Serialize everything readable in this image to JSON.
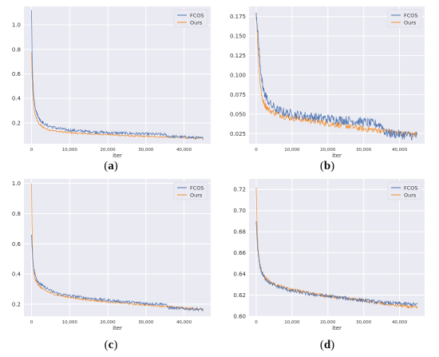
{
  "colors": {
    "plot_bg": "#eaeaf2",
    "grid": "#ffffff",
    "series_fcos": "#4c72b0",
    "series_ours": "#f28e2b",
    "tick_text": "#333333"
  },
  "chart_data": [
    {
      "type": "line",
      "caption_open": "(",
      "caption_letter": "a",
      "caption_close": ")",
      "xlabel": "iter",
      "xlim": [
        -2000,
        47000
      ],
      "ylim": [
        0.03,
        1.15
      ],
      "xticks": [
        0,
        10000,
        20000,
        30000,
        40000
      ],
      "xtick_labels": [
        "0",
        "10,000",
        "20,000",
        "30,000",
        "40,000"
      ],
      "yticks": [
        0.2,
        0.4,
        0.6,
        0.8,
        1.0
      ],
      "ytick_labels": [
        "0.2",
        "0.4",
        "0.6",
        "0.8",
        "1.0"
      ],
      "grid": true,
      "legend": "top-right",
      "series": [
        {
          "name": "FCOS",
          "x": [
            0,
            100,
            300,
            600,
            1000,
            1500,
            2000,
            3000,
            4000,
            5000,
            7000,
            10000,
            15000,
            20000,
            25000,
            30000,
            35000,
            36000,
            40000,
            45000
          ],
          "y": [
            1.12,
            0.82,
            0.55,
            0.4,
            0.32,
            0.27,
            0.235,
            0.2,
            0.18,
            0.17,
            0.155,
            0.14,
            0.13,
            0.12,
            0.115,
            0.11,
            0.105,
            0.09,
            0.085,
            0.075
          ],
          "noise": 0.012
        },
        {
          "name": "Ours",
          "x": [
            0,
            100,
            300,
            600,
            1000,
            1500,
            2000,
            3000,
            4000,
            5000,
            7000,
            10000,
            15000,
            20000,
            25000,
            30000,
            35000,
            40000,
            45000
          ],
          "y": [
            0.78,
            0.62,
            0.45,
            0.33,
            0.26,
            0.22,
            0.19,
            0.165,
            0.15,
            0.14,
            0.13,
            0.12,
            0.11,
            0.105,
            0.095,
            0.09,
            0.085,
            0.08,
            0.075
          ],
          "noise": 0.006
        }
      ]
    },
    {
      "type": "line",
      "caption_open": "(",
      "caption_letter": "b",
      "caption_close": ")",
      "xlabel": "iter",
      "xlim": [
        -2000,
        47000
      ],
      "ylim": [
        0.012,
        0.188
      ],
      "xticks": [
        0,
        10000,
        20000,
        30000,
        40000
      ],
      "xtick_labels": [
        "0",
        "10,000",
        "20,000",
        "30,000",
        "40,000"
      ],
      "yticks": [
        0.025,
        0.05,
        0.075,
        0.1,
        0.125,
        0.15,
        0.175
      ],
      "ytick_labels": [
        "0.025",
        "0.050",
        "0.075",
        "0.100",
        "0.125",
        "0.150",
        "0.175"
      ],
      "grid": true,
      "legend": "top-right",
      "series": [
        {
          "name": "FCOS",
          "x": [
            0,
            200,
            500,
            1000,
            1500,
            2000,
            3000,
            4000,
            6000,
            8000,
            10000,
            15000,
            20000,
            25000,
            30000,
            35000,
            36000,
            40000,
            45000
          ],
          "y": [
            0.18,
            0.17,
            0.15,
            0.12,
            0.095,
            0.08,
            0.07,
            0.062,
            0.055,
            0.052,
            0.05,
            0.047,
            0.044,
            0.042,
            0.04,
            0.036,
            0.026,
            0.024,
            0.022
          ],
          "noise": 0.006
        },
        {
          "name": "Ours",
          "x": [
            0,
            200,
            500,
            1000,
            1500,
            2000,
            3000,
            4000,
            6000,
            8000,
            10000,
            15000,
            20000,
            25000,
            30000,
            35000,
            40000,
            45000
          ],
          "y": [
            0.18,
            0.165,
            0.13,
            0.095,
            0.075,
            0.065,
            0.058,
            0.054,
            0.05,
            0.047,
            0.045,
            0.042,
            0.038,
            0.035,
            0.031,
            0.029,
            0.025,
            0.024
          ],
          "noise": 0.004
        }
      ]
    },
    {
      "type": "line",
      "caption_open": "(",
      "caption_letter": "c",
      "caption_close": ")",
      "xlabel": "iter",
      "xlim": [
        -2000,
        47000
      ],
      "ylim": [
        0.12,
        1.03
      ],
      "xticks": [
        0,
        10000,
        20000,
        30000,
        40000
      ],
      "xtick_labels": [
        "0",
        "10,000",
        "20,000",
        "30,000",
        "40,000"
      ],
      "yticks": [
        0.2,
        0.4,
        0.6,
        0.8,
        1.0
      ],
      "ytick_labels": [
        "0.2",
        "0.4",
        "0.6",
        "0.8",
        "1.0"
      ],
      "grid": true,
      "legend": "top-right",
      "series": [
        {
          "name": "FCOS",
          "x": [
            0,
            100,
            300,
            600,
            1000,
            1500,
            2000,
            3000,
            4000,
            5000,
            7000,
            10000,
            15000,
            20000,
            25000,
            30000,
            35000,
            36000,
            40000,
            45000
          ],
          "y": [
            0.66,
            0.6,
            0.5,
            0.43,
            0.39,
            0.36,
            0.34,
            0.32,
            0.305,
            0.29,
            0.27,
            0.255,
            0.24,
            0.225,
            0.215,
            0.205,
            0.2,
            0.175,
            0.17,
            0.165
          ],
          "noise": 0.01
        },
        {
          "name": "Ours",
          "x": [
            0,
            100,
            300,
            600,
            1000,
            1500,
            2000,
            3000,
            4000,
            5000,
            7000,
            10000,
            15000,
            20000,
            25000,
            30000,
            35000,
            40000,
            45000
          ],
          "y": [
            1.0,
            0.75,
            0.5,
            0.4,
            0.36,
            0.34,
            0.32,
            0.3,
            0.285,
            0.275,
            0.26,
            0.245,
            0.228,
            0.215,
            0.205,
            0.195,
            0.185,
            0.175,
            0.165
          ],
          "noise": 0.006
        }
      ]
    },
    {
      "type": "line",
      "caption_open": "(",
      "caption_letter": "d",
      "caption_close": ")",
      "xlabel": "iter",
      "xlim": [
        -2000,
        47000
      ],
      "ylim": [
        0.6,
        0.73
      ],
      "xticks": [
        0,
        10000,
        20000,
        30000,
        40000
      ],
      "xtick_labels": [
        "0",
        "10,000",
        "20,000",
        "30,000",
        "40,000"
      ],
      "yticks": [
        0.6,
        0.62,
        0.64,
        0.66,
        0.68,
        0.7,
        0.72
      ],
      "ytick_labels": [
        "0.60",
        "0.62",
        "0.64",
        "0.66",
        "0.68",
        "0.70",
        "0.72"
      ],
      "grid": true,
      "legend": "top-right",
      "series": [
        {
          "name": "FCOS",
          "x": [
            0,
            200,
            500,
            1000,
            1500,
            2000,
            3000,
            4000,
            6000,
            8000,
            10000,
            15000,
            20000,
            25000,
            30000,
            35000,
            40000,
            45000
          ],
          "y": [
            0.69,
            0.675,
            0.66,
            0.648,
            0.642,
            0.638,
            0.634,
            0.631,
            0.628,
            0.626,
            0.624,
            0.621,
            0.619,
            0.617,
            0.615,
            0.613,
            0.612,
            0.611
          ],
          "noise": 0.0018
        },
        {
          "name": "Ours",
          "x": [
            0,
            200,
            500,
            1000,
            1500,
            2000,
            3000,
            4000,
            6000,
            8000,
            10000,
            15000,
            20000,
            25000,
            30000,
            35000,
            40000,
            45000
          ],
          "y": [
            0.722,
            0.69,
            0.664,
            0.65,
            0.643,
            0.639,
            0.635,
            0.632,
            0.629,
            0.627,
            0.625,
            0.622,
            0.619,
            0.617,
            0.615,
            0.612,
            0.61,
            0.608
          ],
          "noise": 0.0015
        }
      ]
    }
  ]
}
